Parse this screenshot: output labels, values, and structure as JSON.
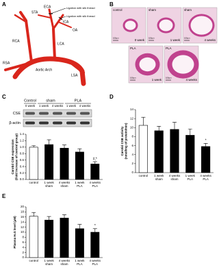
{
  "panel_a": {
    "label": "A",
    "vessels": {
      "eca": "ECA",
      "ica": "ICA",
      "sta": "STA",
      "oa": "OA",
      "rca": "RCA",
      "lca": "LCA",
      "rsa": "RSA",
      "lsa": "LSA",
      "arch": "Aortic Arch"
    },
    "ligations": [
      "Ligation with silk thread",
      "Ligation with silk thread"
    ]
  },
  "panel_b": {
    "label": "B",
    "images": [
      {
        "group": "control",
        "time": "0 week",
        "scale": "100µm"
      },
      {
        "group": "sham",
        "time": "1 week",
        "scale": "100µm"
      },
      {
        "group": "sham",
        "time": "4 weeks",
        "scale": "100µm"
      },
      {
        "group": "PLA",
        "time": "1 week",
        "scale": "100µm"
      },
      {
        "group": "PLA",
        "time": "4 weeks",
        "scale": "100µm"
      }
    ]
  },
  "blot": {
    "groups": [
      "Control",
      "sham",
      "PLA"
    ],
    "times": [
      "0 week",
      "1 week",
      "4 weeks",
      "1 week",
      "4 weeks"
    ],
    "proteins": [
      "CSE",
      "β-actin"
    ]
  },
  "chart_data": [
    {
      "type": "bar",
      "panel": "C",
      "ylabel": [
        "Carotid CSE expression",
        "(Fold increase of control group)"
      ],
      "categories": [
        [
          "control"
        ],
        [
          "1 week",
          "sham"
        ],
        [
          "4 weeks",
          "sham"
        ],
        [
          "1 week",
          "PLA"
        ],
        [
          "4 weeks",
          "PLA"
        ]
      ],
      "values": [
        1.0,
        1.08,
        0.97,
        0.85,
        0.48
      ],
      "errors": [
        0.05,
        0.15,
        0.1,
        0.1,
        0.07
      ],
      "colors": [
        "#ffffff",
        "#000000",
        "#000000",
        "#000000",
        "#000000"
      ],
      "value_notes": [
        null,
        null,
        null,
        null,
        "#,*"
      ],
      "ylim": [
        0,
        1.4
      ],
      "yticks": [
        {
          "value": 0,
          "label": "0.0"
        },
        0.2,
        0.4,
        0.6,
        0.8,
        {
          "value": 1,
          "label": "1.0"
        },
        1.2,
        1.4
      ]
    },
    {
      "type": "bar",
      "panel": "D",
      "ylabel": [
        "Carotid CSE activity",
        "(nmol/mg of protein/min)"
      ],
      "categories": [
        [
          "control"
        ],
        [
          "1 week",
          "sham"
        ],
        [
          "4 weeks",
          "sham"
        ],
        [
          "1 week",
          "PLA"
        ],
        [
          "4 weeks",
          "PLA"
        ]
      ],
      "values": [
        10.5,
        9.3,
        9.6,
        8.3,
        5.8
      ],
      "errors": [
        1.8,
        1.0,
        1.6,
        1.4,
        0.7
      ],
      "colors": [
        "#ffffff",
        "#000000",
        "#000000",
        "#000000",
        "#000000"
      ],
      "value_notes": [
        null,
        null,
        null,
        null,
        "*"
      ],
      "ylim": [
        0,
        14
      ],
      "yticks": [
        0,
        2,
        4,
        6,
        8,
        10,
        12,
        14
      ]
    },
    {
      "type": "bar",
      "panel": "E",
      "ylabel": [
        "Plasma H₂S level (μM)"
      ],
      "categories": [
        [
          "control"
        ],
        [
          "1 week",
          "sham"
        ],
        [
          "4 weeks",
          "sham"
        ],
        [
          "1 week",
          "PLA"
        ],
        [
          "4 weeks",
          "PLA"
        ]
      ],
      "values": [
        16.3,
        14.8,
        15.6,
        11.4,
        10.0
      ],
      "errors": [
        1.5,
        1.4,
        1.3,
        1.7,
        1.4
      ],
      "colors": [
        "#ffffff",
        "#000000",
        "#000000",
        "#000000",
        "#000000"
      ],
      "value_notes": [
        null,
        null,
        null,
        null,
        "*"
      ],
      "ylim": [
        0,
        20
      ],
      "yticks": [
        0,
        2,
        4,
        6,
        8,
        10,
        12,
        14,
        16,
        18,
        20
      ]
    }
  ]
}
